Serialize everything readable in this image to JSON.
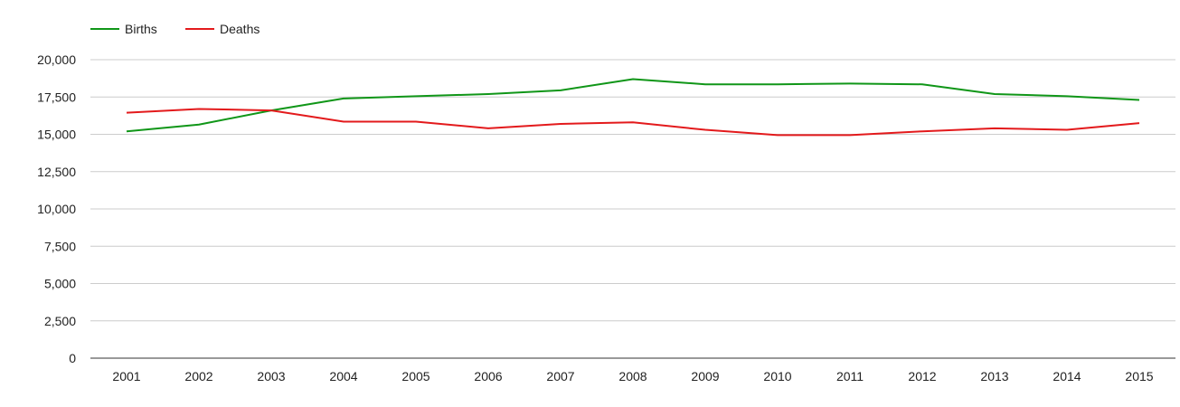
{
  "chart_data": {
    "type": "line",
    "categories": [
      "2001",
      "2002",
      "2003",
      "2004",
      "2005",
      "2006",
      "2007",
      "2008",
      "2009",
      "2010",
      "2011",
      "2012",
      "2013",
      "2014",
      "2015"
    ],
    "series": [
      {
        "name": "Births",
        "color": "#109618",
        "values": [
          15200,
          15650,
          16600,
          17400,
          17550,
          17700,
          17950,
          18700,
          18350,
          18350,
          18400,
          18350,
          17700,
          17550,
          17300
        ]
      },
      {
        "name": "Deaths",
        "color": "#e31a1c",
        "values": [
          16450,
          16700,
          16600,
          15850,
          15850,
          15400,
          15700,
          15800,
          15300,
          14950,
          14950,
          15200,
          15400,
          15300,
          15750
        ]
      }
    ],
    "ylim": [
      0,
      20000
    ],
    "yticks": [
      0,
      2500,
      5000,
      7500,
      10000,
      12500,
      15000,
      17500,
      20000
    ],
    "ytick_labels": [
      "0",
      "2,500",
      "5,000",
      "7,500",
      "10,000",
      "12,500",
      "15,000",
      "17,500",
      "20,000"
    ],
    "title": "",
    "xlabel": "",
    "ylabel": "",
    "grid": true,
    "legend_position": "top-left"
  }
}
